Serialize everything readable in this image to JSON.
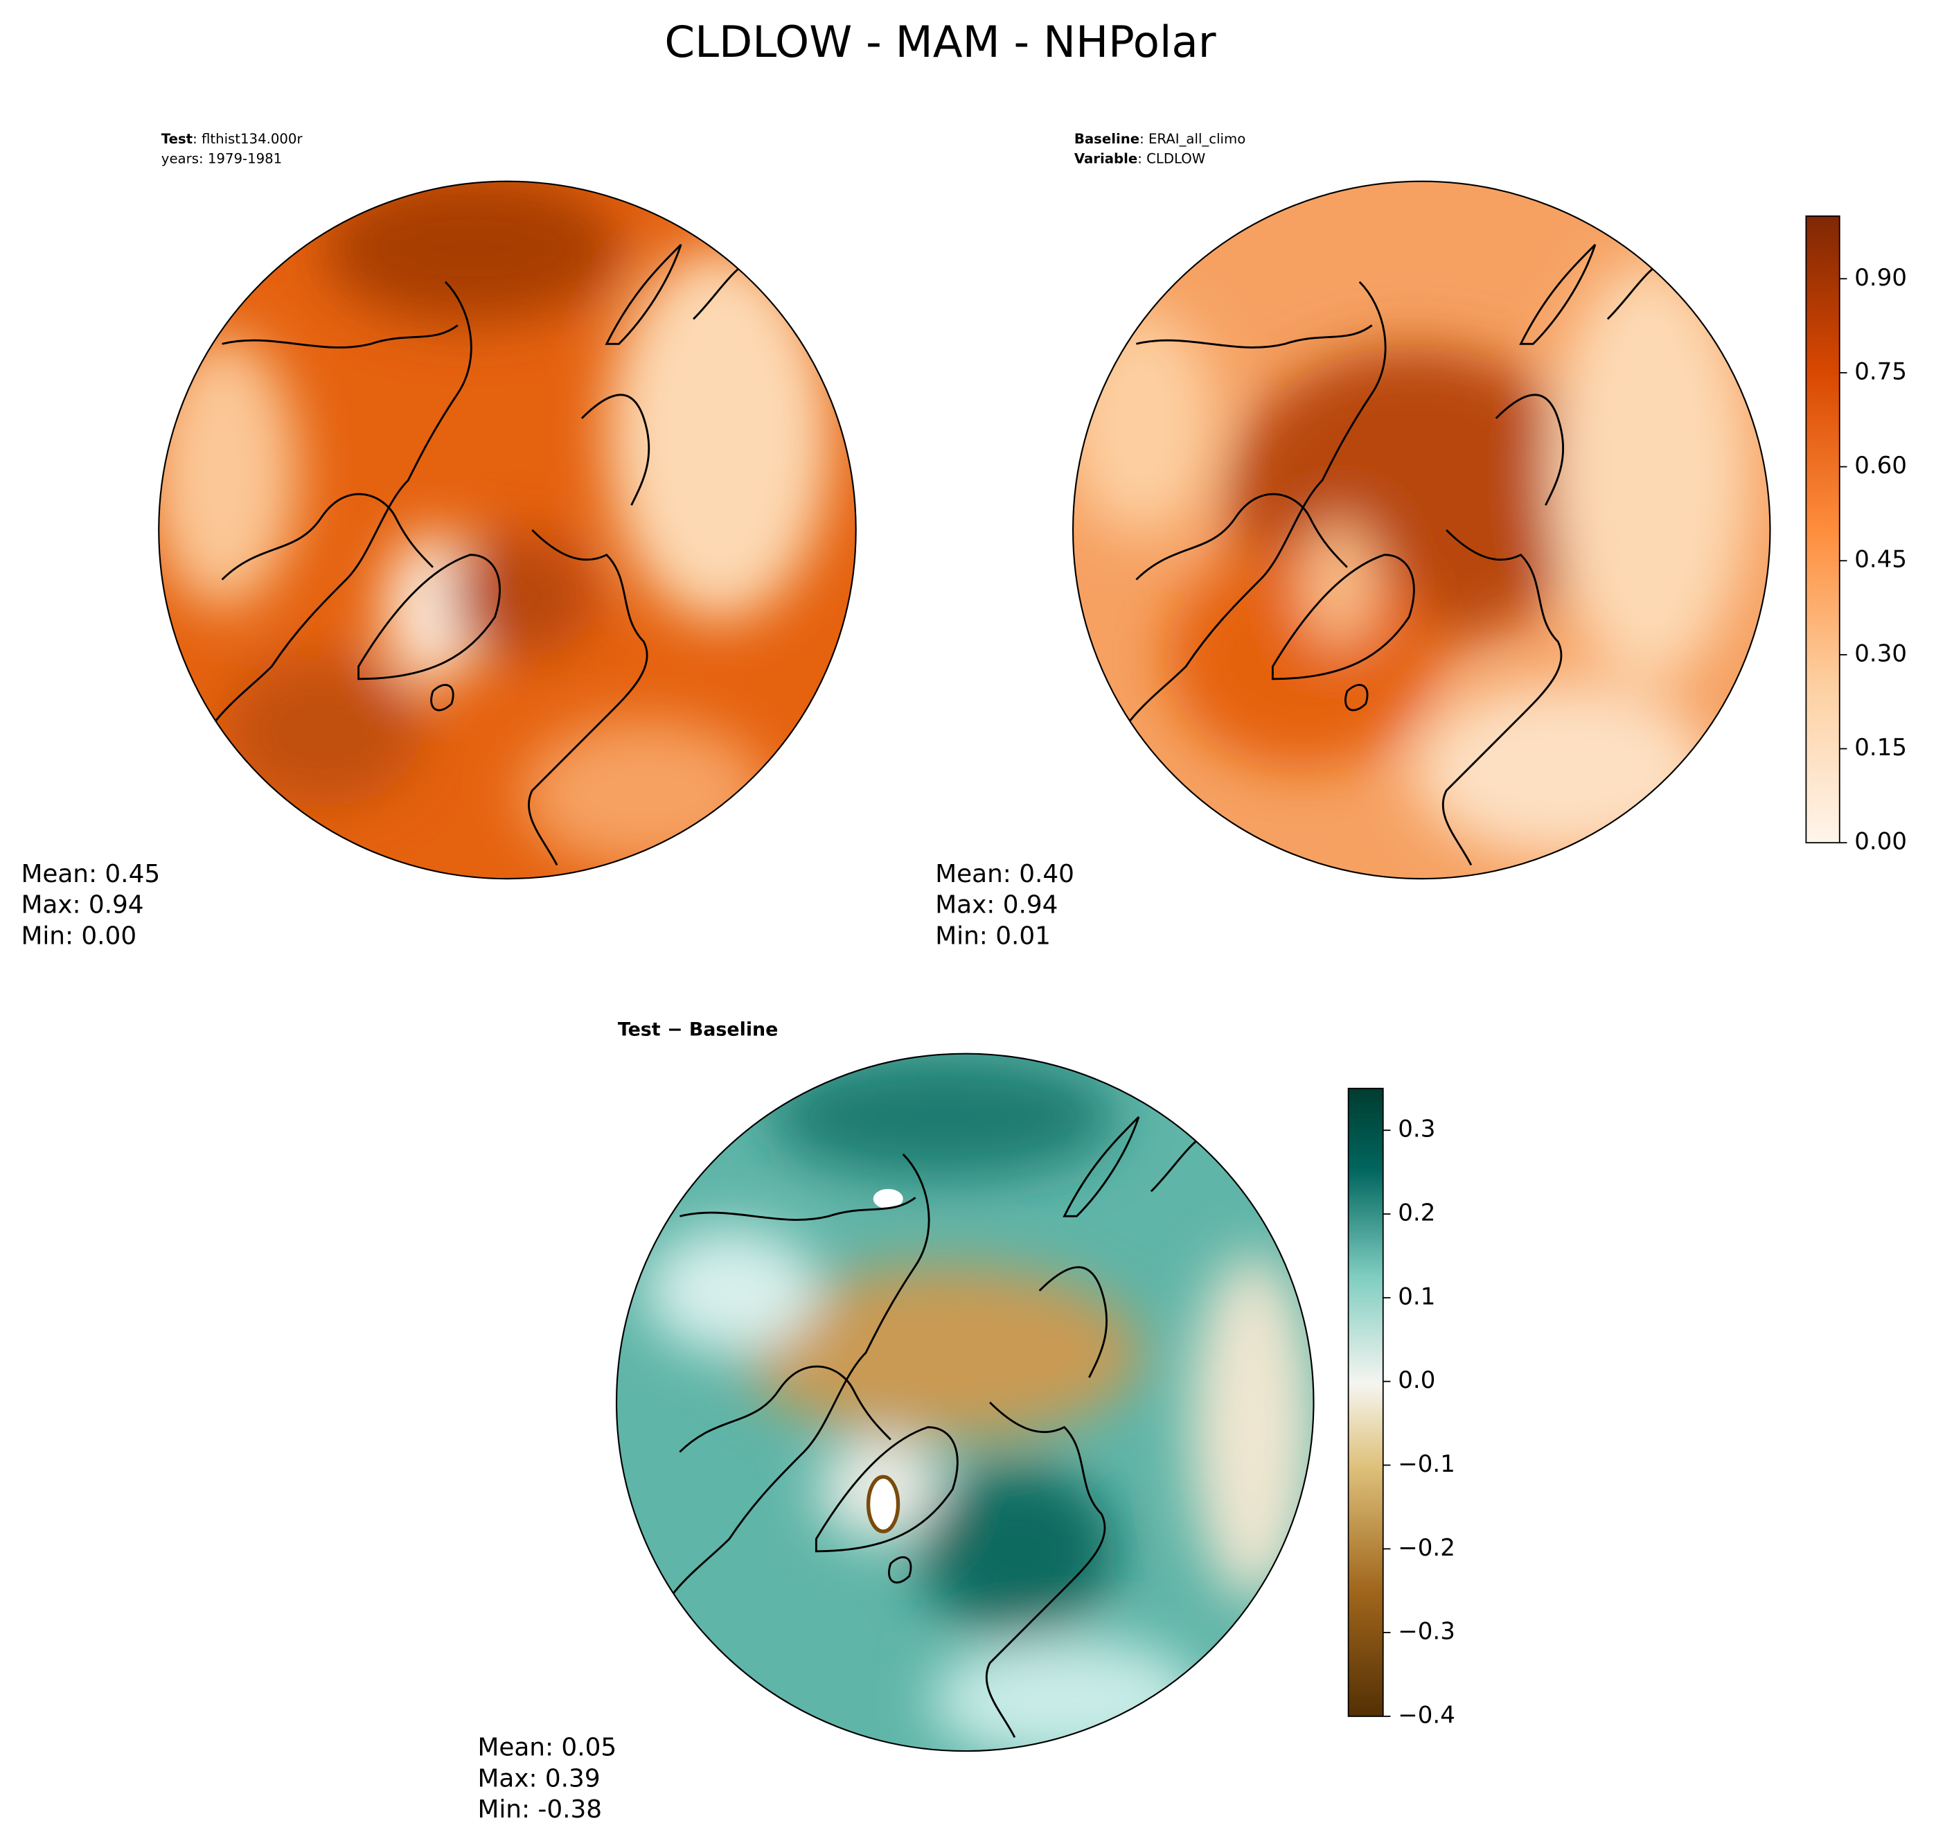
{
  "title": "CLDLOW - MAM - NHPolar",
  "panels": [
    {
      "header": [
        {
          "label": "Test",
          "text": ": flthist134.000r"
        },
        {
          "text": "years: 1979-1981"
        }
      ],
      "stats": [
        "Mean:  0.45",
        "Max:  0.94",
        "Min:  0.00"
      ]
    },
    {
      "header": [
        {
          "label": "Baseline",
          "text": ": ERAI_all_climo"
        },
        {
          "label": "Variable",
          "text": ": CLDLOW"
        }
      ],
      "stats": [
        "Mean:  0.40",
        "Max:  0.94",
        "Min:  0.01"
      ]
    },
    {
      "header": [
        {
          "label": "Test − Baseline"
        }
      ],
      "stats": [
        "Mean:  0.05",
        "Max:  0.39",
        "Min: -0.38"
      ]
    }
  ],
  "colorbars": [
    {
      "clim": [
        0,
        1.0
      ],
      "ticks": [
        {
          "value": 0,
          "label": "0.00"
        },
        {
          "value": 0.15,
          "label": "0.15"
        },
        {
          "value": 0.3,
          "label": "0.30"
        },
        {
          "value": 0.45,
          "label": "0.45"
        },
        {
          "value": 0.6,
          "label": "0.60"
        },
        {
          "value": 0.75,
          "label": "0.75"
        },
        {
          "value": 0.9,
          "label": "0.90"
        }
      ]
    },
    {
      "clim": [
        -0.4,
        0.35
      ],
      "ticks": [
        {
          "value": -0.4,
          "label": "−0.4"
        },
        {
          "value": -0.3,
          "label": "−0.3"
        },
        {
          "value": -0.2,
          "label": "−0.2"
        },
        {
          "value": -0.1,
          "label": "−0.1"
        },
        {
          "value": 0,
          "label": "0.0"
        },
        0.1,
        0.2,
        0.3
      ]
    }
  ]
}
